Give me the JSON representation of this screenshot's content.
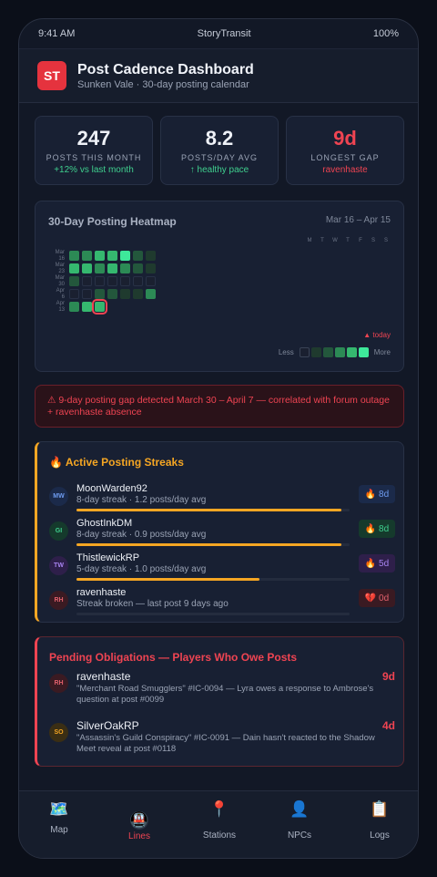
{
  "status_bar": {
    "time": "9:41 AM",
    "carrier": "StoryTransit",
    "battery": "100%"
  },
  "header": {
    "logo": "ST",
    "title": "Post Cadence Dashboard",
    "subtitle": "Sunken Vale · 30-day posting calendar"
  },
  "stats": [
    {
      "value": "247",
      "label": "POSTS THIS MONTH",
      "sub": "+12% vs last month"
    },
    {
      "value": "8.2",
      "label": "POSTS/DAY AVG",
      "sub": "↑ healthy pace"
    },
    {
      "value": "9d",
      "label": "LONGEST GAP",
      "sub": "ravenhaste"
    }
  ],
  "heatmap": {
    "title": "30-Day Posting Heatmap",
    "range": "Mar 16 – Apr 15",
    "days_of_week": [
      "M",
      "T",
      "W",
      "T",
      "F",
      "S",
      "S"
    ],
    "weeks": [
      {
        "label_line1": "Mar",
        "label_line2": "16",
        "levels": [
          3,
          3,
          4,
          4,
          5,
          2,
          1
        ]
      },
      {
        "label_line1": "Mar",
        "label_line2": "23",
        "levels": [
          4,
          4,
          3,
          4,
          3,
          2,
          1
        ]
      },
      {
        "label_line1": "Mar",
        "label_line2": "30",
        "levels": [
          2,
          0,
          0,
          0,
          0,
          0,
          0
        ]
      },
      {
        "label_line1": "Apr",
        "label_line2": "6",
        "levels": [
          0,
          0,
          2,
          2,
          1,
          1,
          3
        ]
      },
      {
        "label_line1": "Apr",
        "label_line2": "13",
        "levels": [
          3,
          4,
          4
        ]
      }
    ],
    "today": {
      "week": 4,
      "day": 2
    },
    "today_label": "▲ today",
    "legend_less": "Less",
    "legend_more": "More",
    "colors": [
      "#1a2030",
      "#1f3a2e",
      "#23573c",
      "#2c8a55",
      "#35b86f",
      "#3ee89a"
    ]
  },
  "alert": {
    "text": "⚠ 9-day posting gap detected March 30 – April 7 — correlated with forum outage + ravenhaste absence"
  },
  "streaks": {
    "title": "🔥 Active Posting Streaks",
    "items": [
      {
        "initials": "MW",
        "name": "MoonWarden92",
        "detail": "8-day streak · 1.2 posts/day avg",
        "progress": 0.97,
        "badge": "🔥 8d",
        "avatar_bg": "#1b2a4a",
        "avatar_fg": "#6e9cf0",
        "badge_bg": "#1b2a4a",
        "badge_fg": "#6e9cf0"
      },
      {
        "initials": "GI",
        "name": "GhostInkDM",
        "detail": "8-day streak · 0.9 posts/day avg",
        "progress": 0.97,
        "badge": "🔥 8d",
        "avatar_bg": "#153a2c",
        "avatar_fg": "#3fcf8e",
        "badge_bg": "#153a2c",
        "badge_fg": "#3fcf8e"
      },
      {
        "initials": "TW",
        "name": "ThistlewickRP",
        "detail": "5-day streak · 1.0 posts/day avg",
        "progress": 0.67,
        "badge": "🔥 5d",
        "avatar_bg": "#2e1f4a",
        "avatar_fg": "#a884f0",
        "badge_bg": "#2e1f4a",
        "badge_fg": "#a884f0"
      },
      {
        "initials": "RH",
        "name": "ravenhaste",
        "detail": "Streak broken — last post 9 days ago",
        "progress": 0,
        "badge": "💔 0d",
        "avatar_bg": "#3a1a22",
        "avatar_fg": "#e0606c",
        "badge_bg": "#3a1a22",
        "badge_fg": "#e0606c"
      }
    ]
  },
  "obligations": {
    "title": "Pending Obligations — Players Who Owe Posts",
    "items": [
      {
        "initials": "RH",
        "name": "ravenhaste",
        "desc": "\"Merchant Road Smugglers\" #IC-0094 — Lyra owes a response to Ambrose's question at post #0099",
        "days": "9d",
        "avatar_bg": "#3a1a22",
        "avatar_fg": "#e0606c"
      },
      {
        "initials": "SO",
        "name": "SilverOakRP",
        "desc": "\"Assassin's Guild Conspiracy\" #IC-0091 — Dain hasn't reacted to the Shadow Meet reveal at post #0118",
        "days": "4d",
        "avatar_bg": "#3a2e14",
        "avatar_fg": "#f5a623"
      }
    ]
  },
  "tabs": [
    {
      "icon": "🗺️",
      "icon_name": "map-icon",
      "label": "Map",
      "active": false
    },
    {
      "icon": "🚇",
      "icon_name": "metro-icon",
      "label": "Lines",
      "active": true
    },
    {
      "icon": "📍",
      "icon_name": "pin-icon",
      "label": "Stations",
      "active": false
    },
    {
      "icon": "👤",
      "icon_name": "person-icon",
      "label": "NPCs",
      "active": false
    },
    {
      "icon": "📋",
      "icon_name": "clipboard-icon",
      "label": "Logs",
      "active": false
    }
  ]
}
